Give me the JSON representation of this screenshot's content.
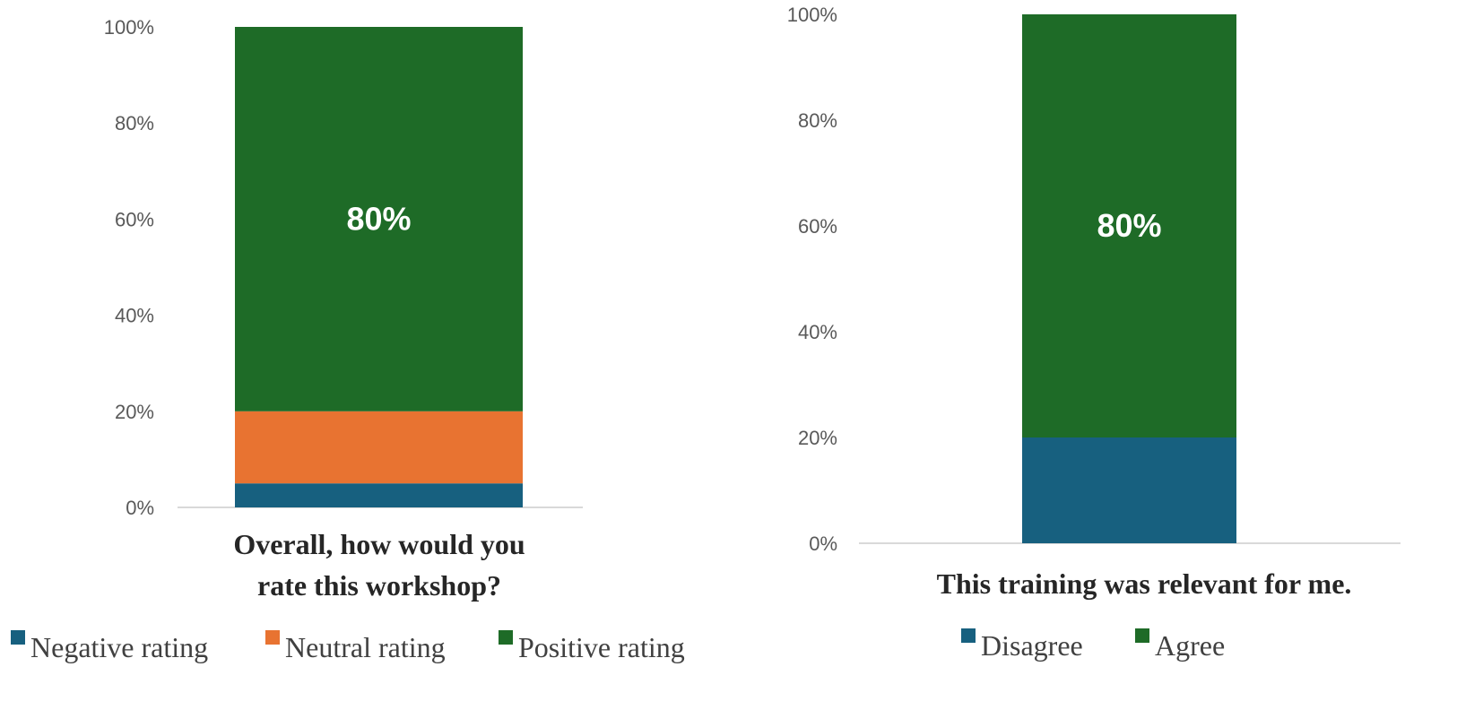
{
  "chart_data": [
    {
      "type": "bar",
      "stacked": true,
      "categories": [
        "Overall, how would you rate this workshop?"
      ],
      "category_lines": [
        "Overall, how would you",
        "rate this workshop?"
      ],
      "series": [
        {
          "name": "Negative rating",
          "values": [
            5
          ],
          "color": "#17607f"
        },
        {
          "name": "Neutral rating",
          "values": [
            15
          ],
          "color": "#e87331"
        },
        {
          "name": "Positive rating",
          "values": [
            80
          ],
          "color": "#1e6b27",
          "label": "80%"
        }
      ],
      "ylim": [
        0,
        100
      ],
      "yticks": [
        "0%",
        "20%",
        "40%",
        "60%",
        "80%",
        "100%"
      ],
      "legend": "bottom",
      "grid": false
    },
    {
      "type": "bar",
      "stacked": true,
      "categories": [
        "This training was relevant for me."
      ],
      "category_lines": [
        "This training was relevant for me."
      ],
      "series": [
        {
          "name": "Disagree",
          "values": [
            20
          ],
          "color": "#17607f"
        },
        {
          "name": "Agree",
          "values": [
            80
          ],
          "color": "#1e6b27",
          "label": "80%"
        }
      ],
      "ylim": [
        0,
        100
      ],
      "yticks": [
        "0%",
        "20%",
        "40%",
        "60%",
        "80%",
        "100%"
      ],
      "legend": "bottom",
      "grid": false
    }
  ]
}
